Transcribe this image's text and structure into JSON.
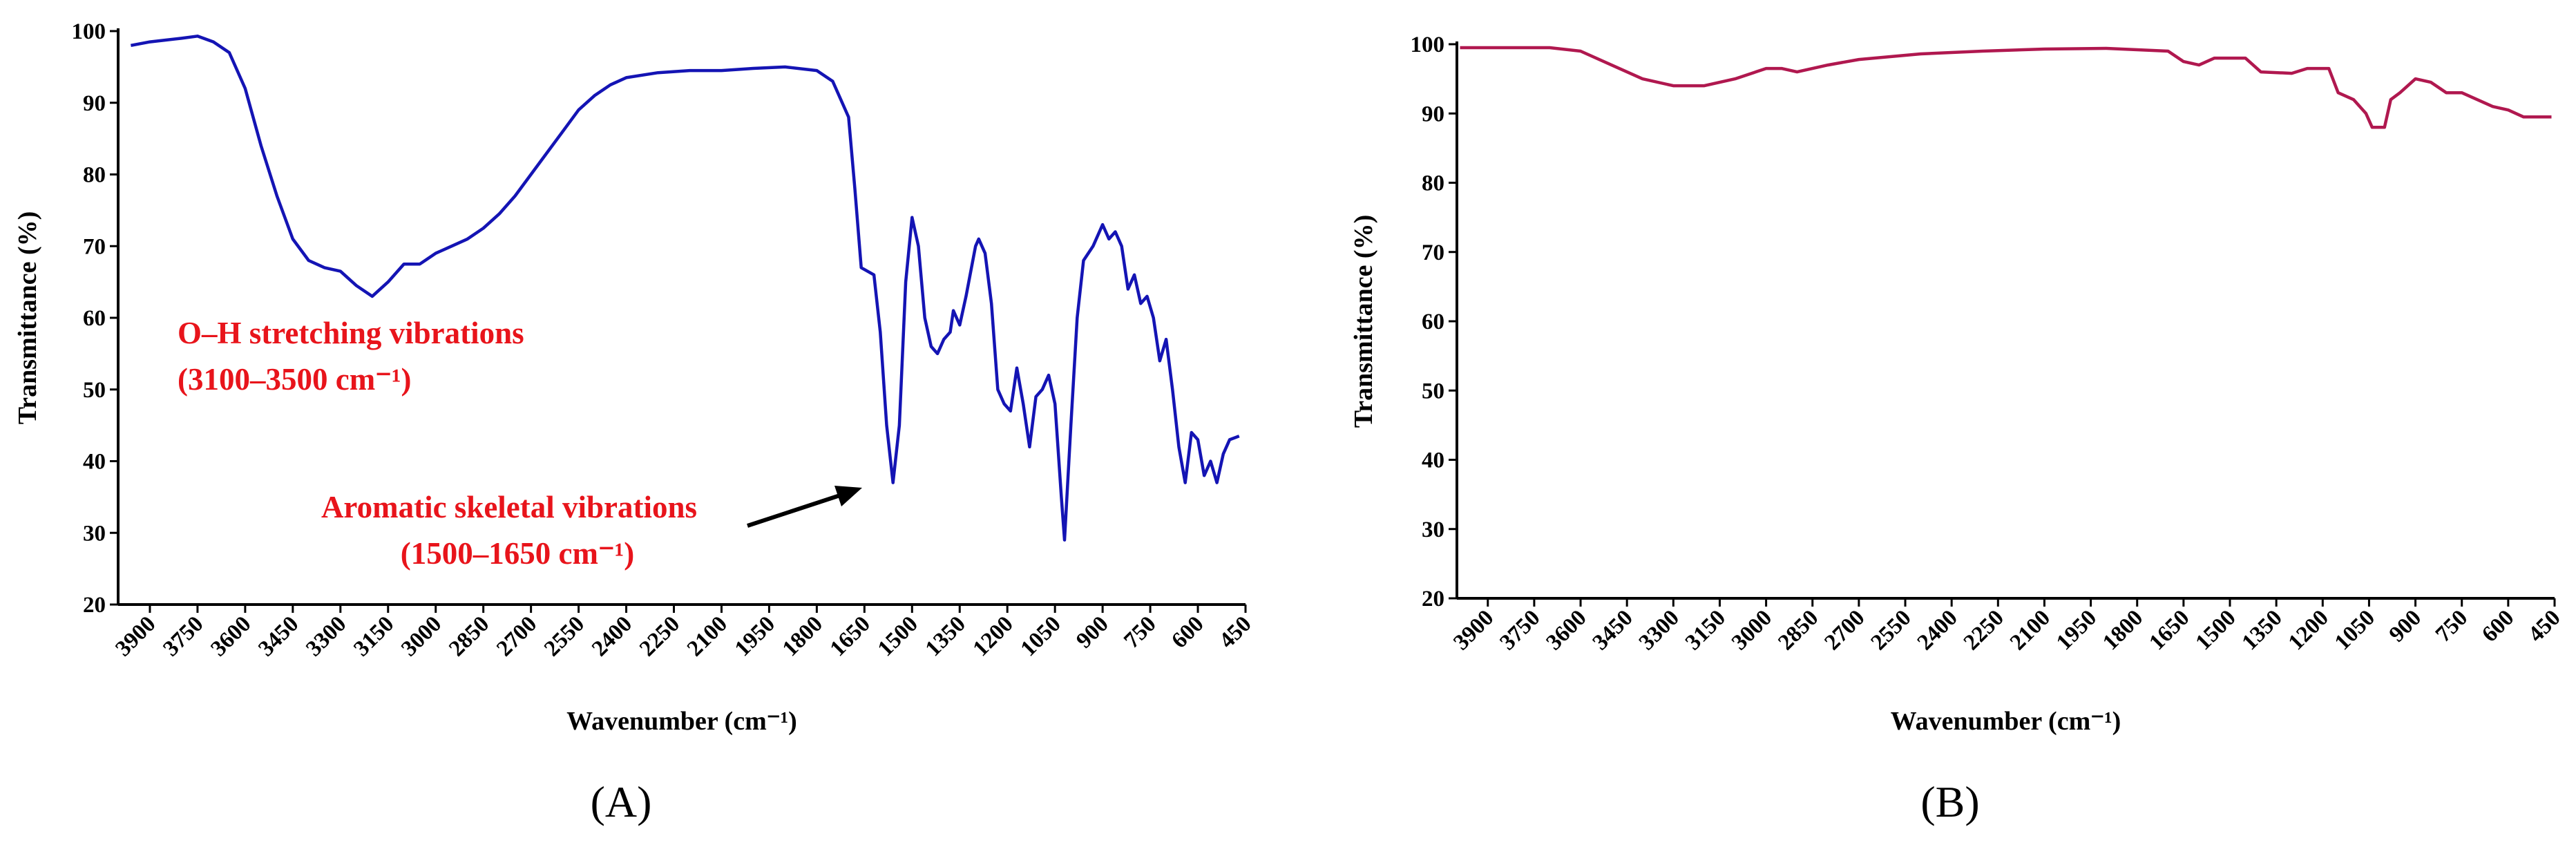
{
  "chart_data": [
    {
      "type": "line",
      "panel_label": "(A)",
      "xlabel": "Wavenumber (cm⁻¹)",
      "ylabel": "Transmittance (%)",
      "color": "#1414b4",
      "xlim": [
        4000,
        450
      ],
      "ylim": [
        20,
        100
      ],
      "xticks": [
        3900,
        3750,
        3600,
        3450,
        3300,
        3150,
        3000,
        2850,
        2700,
        2550,
        2400,
        2250,
        2100,
        1950,
        1800,
        1650,
        1500,
        1350,
        1200,
        1050,
        900,
        750,
        600,
        450
      ],
      "yticks": [
        20,
        30,
        40,
        50,
        60,
        70,
        80,
        90,
        100
      ],
      "x": [
        3960,
        3900,
        3800,
        3750,
        3700,
        3650,
        3600,
        3550,
        3500,
        3450,
        3400,
        3350,
        3300,
        3250,
        3200,
        3150,
        3100,
        3050,
        3000,
        2950,
        2900,
        2850,
        2800,
        2750,
        2700,
        2650,
        2600,
        2550,
        2500,
        2450,
        2400,
        2300,
        2200,
        2100,
        2000,
        1900,
        1800,
        1750,
        1700,
        1680,
        1660,
        1620,
        1600,
        1580,
        1560,
        1540,
        1520,
        1500,
        1480,
        1460,
        1440,
        1420,
        1400,
        1380,
        1370,
        1350,
        1330,
        1300,
        1290,
        1270,
        1250,
        1230,
        1210,
        1190,
        1170,
        1150,
        1130,
        1110,
        1090,
        1070,
        1050,
        1030,
        1020,
        1000,
        980,
        960,
        930,
        900,
        880,
        860,
        840,
        820,
        800,
        780,
        760,
        740,
        720,
        700,
        680,
        660,
        640,
        620,
        600,
        580,
        560,
        540,
        520,
        500,
        470
      ],
      "values": [
        98,
        98.5,
        99,
        99.3,
        98.5,
        97,
        92,
        84,
        77,
        71,
        68,
        67,
        66.5,
        64.5,
        63,
        65,
        67.5,
        67.5,
        69,
        70,
        71,
        72.5,
        74.5,
        77,
        80,
        83,
        86,
        89,
        91,
        92.5,
        93.5,
        94.2,
        94.5,
        94.5,
        94.8,
        95,
        94.5,
        93,
        88,
        78,
        67,
        66,
        58,
        45,
        37,
        45,
        65,
        74,
        70,
        60,
        56,
        55,
        57,
        58,
        61,
        59,
        63,
        70,
        71,
        69,
        62,
        50,
        48,
        47,
        53,
        48,
        42,
        49,
        50,
        52,
        48,
        35,
        29,
        45,
        60,
        68,
        70,
        73,
        71,
        72,
        70,
        64,
        66,
        62,
        63,
        60,
        54,
        57,
        50,
        42,
        37,
        44,
        43,
        38,
        40,
        37,
        41,
        43,
        43.5
      ],
      "annotations": [
        {
          "text": [
            "O–H stretching vibrations",
            "(3100–3500 cm⁻¹)"
          ]
        },
        {
          "text": [
            "Aromatic skeletal vibrations",
            "(1500–1650 cm⁻¹)"
          ]
        }
      ]
    },
    {
      "type": "line",
      "panel_label": "(B)",
      "xlabel": "Wavenumber (cm⁻¹)",
      "ylabel": "Transmittance (%)",
      "color": "#b0184f",
      "xlim": [
        4000,
        450
      ],
      "ylim": [
        20,
        100
      ],
      "xticks": [
        3900,
        3750,
        3600,
        3450,
        3300,
        3150,
        3000,
        2850,
        2700,
        2550,
        2400,
        2250,
        2100,
        1950,
        1800,
        1650,
        1500,
        1350,
        1200,
        1050,
        900,
        750,
        600,
        450
      ],
      "yticks": [
        20,
        30,
        40,
        50,
        60,
        70,
        80,
        90,
        100
      ],
      "x": [
        3990,
        3700,
        3600,
        3500,
        3400,
        3300,
        3200,
        3100,
        3000,
        2950,
        2900,
        2800,
        2700,
        2500,
        2300,
        2100,
        1900,
        1700,
        1650,
        1600,
        1550,
        1450,
        1400,
        1300,
        1250,
        1180,
        1150,
        1100,
        1060,
        1040,
        1000,
        980,
        950,
        900,
        850,
        800,
        750,
        700,
        650,
        600,
        550,
        460
      ],
      "values": [
        99.5,
        99.5,
        99,
        97,
        95,
        94,
        94,
        95,
        96.5,
        96.5,
        96,
        97,
        97.8,
        98.6,
        99,
        99.3,
        99.4,
        99,
        97.5,
        97,
        98,
        98,
        96,
        95.8,
        96.5,
        96.5,
        93,
        92,
        90,
        88,
        88,
        92,
        93,
        95,
        94.5,
        93,
        93,
        92,
        91,
        90.5,
        89.5,
        89.5
      ]
    }
  ]
}
